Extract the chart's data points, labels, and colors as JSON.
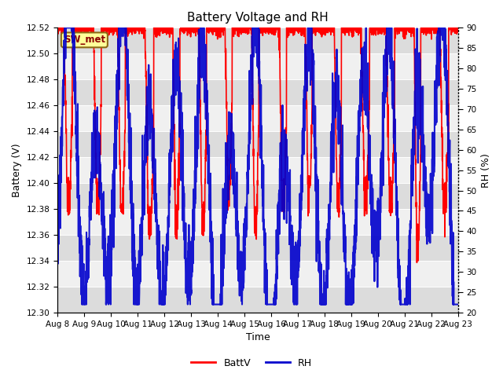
{
  "title": "Battery Voltage and RH",
  "xlabel": "Time",
  "ylabel_left": "Battery (V)",
  "ylabel_right": "RH (%)",
  "x_ticks": [
    "Aug 8",
    "Aug 9",
    "Aug 10",
    "Aug 11",
    "Aug 12",
    "Aug 13",
    "Aug 14",
    "Aug 15",
    "Aug 16",
    "Aug 17",
    "Aug 18",
    "Aug 19",
    "Aug 20",
    "Aug 21",
    "Aug 22",
    "Aug 23"
  ],
  "ylim_left": [
    12.3,
    12.52
  ],
  "ylim_right": [
    20,
    90
  ],
  "yticks_left": [
    12.3,
    12.32,
    12.34,
    12.36,
    12.38,
    12.4,
    12.42,
    12.44,
    12.46,
    12.48,
    12.5,
    12.52
  ],
  "yticks_right": [
    20,
    25,
    30,
    35,
    40,
    45,
    50,
    55,
    60,
    65,
    70,
    75,
    80,
    85,
    90
  ],
  "batt_color": "#FF0000",
  "rh_color": "#0000CD",
  "bg_color": "#FFFFFF",
  "plot_bg_light": "#F0F0F0",
  "plot_bg_dark": "#DCDCDC",
  "annotation_text": "SW_met",
  "annotation_color": "#8B0000",
  "annotation_bg": "#FFFF99",
  "annotation_border": "#8B6914",
  "legend_batt": "BattV",
  "legend_rh": "RH",
  "title_fontsize": 11,
  "axis_label_fontsize": 9,
  "tick_fontsize": 7.5,
  "num_points": 3000,
  "seed": 123
}
